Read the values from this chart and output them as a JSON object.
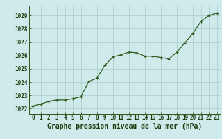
{
  "x": [
    0,
    1,
    2,
    3,
    4,
    5,
    6,
    7,
    8,
    9,
    10,
    11,
    12,
    13,
    14,
    15,
    16,
    17,
    18,
    19,
    20,
    21,
    22,
    23
  ],
  "y": [
    1022.2,
    1022.35,
    1022.55,
    1022.65,
    1022.65,
    1022.75,
    1022.9,
    1024.05,
    1024.3,
    1025.25,
    1025.9,
    1026.05,
    1026.25,
    1026.2,
    1025.95,
    1025.95,
    1025.85,
    1025.75,
    1026.25,
    1026.95,
    1027.65,
    1028.55,
    1029.0,
    1029.2
  ],
  "line_color": "#2d5a1b",
  "marker_color": "#2d5a1b",
  "bg_color": "#ceeaea",
  "grid_color": "#b0d0d0",
  "title": "Graphe pression niveau de la mer (hPa)",
  "ylim_min": 1021.6,
  "ylim_max": 1029.75,
  "yticks": [
    1022,
    1023,
    1024,
    1025,
    1026,
    1027,
    1028,
    1029
  ],
  "xticks": [
    0,
    1,
    2,
    3,
    4,
    5,
    6,
    7,
    8,
    9,
    10,
    11,
    12,
    13,
    14,
    15,
    16,
    17,
    18,
    19,
    20,
    21,
    22,
    23
  ],
  "tick_fontsize": 5.5,
  "title_fontsize": 7.0,
  "title_color": "#1a3a0a",
  "axis_color": "#2d5a1b"
}
